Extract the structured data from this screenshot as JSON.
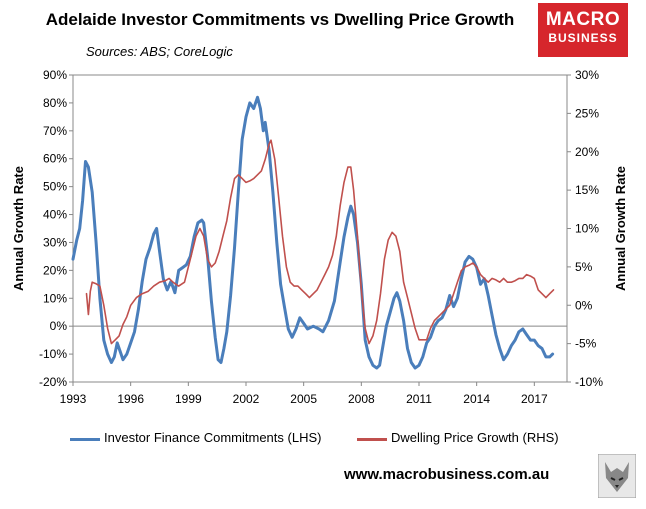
{
  "title": "Adelaide Investor Commitments vs Dwelling Price Growth",
  "subtitle": "Sources: ABS; CoreLogic",
  "logo": {
    "line1": "MACRO",
    "line2": "BUSINESS",
    "color": "#d6262c"
  },
  "website": "www.macrobusiness.com.au",
  "chart_data": {
    "type": "line",
    "xlabel": "",
    "x_ticks": [
      "1993",
      "1996",
      "1999",
      "2002",
      "2005",
      "2008",
      "2011",
      "2014",
      "2017"
    ],
    "xlim": [
      1993,
      2018.7
    ],
    "y_left": {
      "label": "Annual Growth Rate",
      "lim": [
        -20,
        90
      ],
      "ticks": [
        -20,
        -10,
        0,
        10,
        20,
        30,
        40,
        50,
        60,
        70,
        80,
        90
      ],
      "unit": "%"
    },
    "y_right": {
      "label": "Annual Growth Rate",
      "lim": [
        -10,
        30
      ],
      "ticks": [
        -10,
        -5,
        0,
        5,
        10,
        15,
        20,
        25,
        30
      ],
      "unit": "%"
    },
    "grid": false,
    "legend_position": "bottom",
    "series": [
      {
        "name": "Investor Finance Commitments (LHS)",
        "axis": "left",
        "color": "#4a7ebb",
        "points": [
          [
            1993.0,
            24
          ],
          [
            1993.2,
            31
          ],
          [
            1993.35,
            35
          ],
          [
            1993.5,
            45
          ],
          [
            1993.65,
            59
          ],
          [
            1993.8,
            57
          ],
          [
            1994.0,
            48
          ],
          [
            1994.2,
            30
          ],
          [
            1994.4,
            10
          ],
          [
            1994.6,
            -5
          ],
          [
            1994.8,
            -10
          ],
          [
            1995.0,
            -13
          ],
          [
            1995.15,
            -11
          ],
          [
            1995.3,
            -6
          ],
          [
            1995.45,
            -9
          ],
          [
            1995.6,
            -12
          ],
          [
            1995.8,
            -10
          ],
          [
            1996.0,
            -6
          ],
          [
            1996.2,
            -2
          ],
          [
            1996.4,
            6
          ],
          [
            1996.6,
            16
          ],
          [
            1996.8,
            24
          ],
          [
            1997.0,
            28
          ],
          [
            1997.2,
            33
          ],
          [
            1997.35,
            35
          ],
          [
            1997.5,
            27
          ],
          [
            1997.7,
            17
          ],
          [
            1997.9,
            13
          ],
          [
            1998.1,
            16
          ],
          [
            1998.3,
            12
          ],
          [
            1998.5,
            20
          ],
          [
            1998.7,
            21
          ],
          [
            1998.9,
            22
          ],
          [
            1999.1,
            25
          ],
          [
            1999.3,
            32
          ],
          [
            1999.5,
            37
          ],
          [
            1999.7,
            38
          ],
          [
            1999.8,
            37
          ],
          [
            2000.0,
            25
          ],
          [
            2000.2,
            9
          ],
          [
            2000.4,
            -4
          ],
          [
            2000.55,
            -12
          ],
          [
            2000.7,
            -13
          ],
          [
            2000.85,
            -8
          ],
          [
            2001.0,
            -2
          ],
          [
            2001.2,
            11
          ],
          [
            2001.4,
            28
          ],
          [
            2001.6,
            48
          ],
          [
            2001.8,
            67
          ],
          [
            2002.0,
            75
          ],
          [
            2002.2,
            80
          ],
          [
            2002.4,
            78
          ],
          [
            2002.6,
            82
          ],
          [
            2002.75,
            78
          ],
          [
            2002.9,
            70
          ],
          [
            2003.0,
            73
          ],
          [
            2003.2,
            63
          ],
          [
            2003.4,
            48
          ],
          [
            2003.6,
            30
          ],
          [
            2003.8,
            15
          ],
          [
            2004.0,
            7
          ],
          [
            2004.2,
            -1
          ],
          [
            2004.4,
            -4
          ],
          [
            2004.6,
            -1
          ],
          [
            2004.8,
            3
          ],
          [
            2005.0,
            1
          ],
          [
            2005.2,
            -1
          ],
          [
            2005.5,
            0
          ],
          [
            2005.8,
            -1
          ],
          [
            2006.0,
            -2
          ],
          [
            2006.3,
            2
          ],
          [
            2006.6,
            9
          ],
          [
            2006.9,
            23
          ],
          [
            2007.1,
            32
          ],
          [
            2007.3,
            39
          ],
          [
            2007.45,
            43
          ],
          [
            2007.6,
            40
          ],
          [
            2007.8,
            30
          ],
          [
            2008.0,
            15
          ],
          [
            2008.2,
            -5
          ],
          [
            2008.4,
            -11
          ],
          [
            2008.6,
            -14
          ],
          [
            2008.8,
            -15
          ],
          [
            2008.95,
            -14
          ],
          [
            2009.1,
            -8
          ],
          [
            2009.3,
            0
          ],
          [
            2009.5,
            5
          ],
          [
            2009.7,
            10
          ],
          [
            2009.85,
            12
          ],
          [
            2010.0,
            9
          ],
          [
            2010.2,
            2
          ],
          [
            2010.4,
            -8
          ],
          [
            2010.6,
            -13
          ],
          [
            2010.8,
            -15
          ],
          [
            2011.0,
            -14
          ],
          [
            2011.2,
            -11
          ],
          [
            2011.4,
            -6
          ],
          [
            2011.6,
            -4
          ],
          [
            2011.8,
            0
          ],
          [
            2012.0,
            2
          ],
          [
            2012.2,
            3
          ],
          [
            2012.4,
            6
          ],
          [
            2012.6,
            11
          ],
          [
            2012.8,
            7
          ],
          [
            2013.0,
            10
          ],
          [
            2013.2,
            17
          ],
          [
            2013.4,
            23
          ],
          [
            2013.6,
            25
          ],
          [
            2013.8,
            24
          ],
          [
            2014.0,
            21
          ],
          [
            2014.2,
            15
          ],
          [
            2014.4,
            17
          ],
          [
            2014.6,
            11
          ],
          [
            2014.8,
            4
          ],
          [
            2015.0,
            -3
          ],
          [
            2015.2,
            -8
          ],
          [
            2015.4,
            -12
          ],
          [
            2015.6,
            -10
          ],
          [
            2015.8,
            -7
          ],
          [
            2016.0,
            -5
          ],
          [
            2016.2,
            -2
          ],
          [
            2016.4,
            -1
          ],
          [
            2016.6,
            -3
          ],
          [
            2016.8,
            -5
          ],
          [
            2017.0,
            -5
          ],
          [
            2017.2,
            -7
          ],
          [
            2017.4,
            -8
          ],
          [
            2017.6,
            -11
          ],
          [
            2017.8,
            -11
          ],
          [
            2017.95,
            -10
          ]
        ]
      },
      {
        "name": "Dwelling Price Growth (RHS)",
        "axis": "right",
        "color": "#c0504d",
        "points": [
          [
            1993.7,
            1.5
          ],
          [
            1993.8,
            -1.2
          ],
          [
            1993.9,
            1.8
          ],
          [
            1994.0,
            3
          ],
          [
            1994.2,
            2.8
          ],
          [
            1994.4,
            2.5
          ],
          [
            1994.6,
            0
          ],
          [
            1994.8,
            -3
          ],
          [
            1995.0,
            -5
          ],
          [
            1995.2,
            -4.5
          ],
          [
            1995.4,
            -4
          ],
          [
            1995.6,
            -2.5
          ],
          [
            1995.8,
            -1.5
          ],
          [
            1996.0,
            0
          ],
          [
            1996.3,
            1
          ],
          [
            1996.6,
            1.5
          ],
          [
            1996.9,
            1.8
          ],
          [
            1997.2,
            2.5
          ],
          [
            1997.5,
            3
          ],
          [
            1997.8,
            3.2
          ],
          [
            1998.0,
            3.5
          ],
          [
            1998.2,
            3
          ],
          [
            1998.5,
            2.5
          ],
          [
            1998.8,
            3
          ],
          [
            1999.1,
            6
          ],
          [
            1999.4,
            9
          ],
          [
            1999.6,
            10
          ],
          [
            1999.8,
            9
          ],
          [
            2000.0,
            6
          ],
          [
            2000.2,
            5
          ],
          [
            2000.4,
            5.5
          ],
          [
            2000.6,
            7
          ],
          [
            2000.8,
            9
          ],
          [
            2001.0,
            11
          ],
          [
            2001.2,
            14
          ],
          [
            2001.4,
            16.5
          ],
          [
            2001.6,
            17
          ],
          [
            2001.8,
            16.5
          ],
          [
            2002.0,
            16
          ],
          [
            2002.2,
            16.2
          ],
          [
            2002.4,
            16.5
          ],
          [
            2002.6,
            17
          ],
          [
            2002.8,
            17.5
          ],
          [
            2003.0,
            19
          ],
          [
            2003.2,
            21
          ],
          [
            2003.3,
            21.5
          ],
          [
            2003.5,
            19
          ],
          [
            2003.7,
            14
          ],
          [
            2003.9,
            9
          ],
          [
            2004.1,
            5
          ],
          [
            2004.3,
            3
          ],
          [
            2004.5,
            2.5
          ],
          [
            2004.7,
            2.5
          ],
          [
            2004.9,
            2
          ],
          [
            2005.1,
            1.5
          ],
          [
            2005.3,
            1
          ],
          [
            2005.5,
            1.5
          ],
          [
            2005.7,
            2
          ],
          [
            2005.9,
            3
          ],
          [
            2006.1,
            4
          ],
          [
            2006.3,
            5
          ],
          [
            2006.5,
            6.5
          ],
          [
            2006.7,
            9
          ],
          [
            2006.9,
            13
          ],
          [
            2007.1,
            16
          ],
          [
            2007.3,
            18
          ],
          [
            2007.45,
            18
          ],
          [
            2007.6,
            15
          ],
          [
            2007.8,
            9
          ],
          [
            2008.0,
            2
          ],
          [
            2008.2,
            -3
          ],
          [
            2008.4,
            -5
          ],
          [
            2008.6,
            -4
          ],
          [
            2008.8,
            -2
          ],
          [
            2009.0,
            1.5
          ],
          [
            2009.2,
            6
          ],
          [
            2009.4,
            8.5
          ],
          [
            2009.6,
            9.5
          ],
          [
            2009.8,
            9
          ],
          [
            2010.0,
            7
          ],
          [
            2010.2,
            3
          ],
          [
            2010.4,
            1
          ],
          [
            2010.6,
            -1
          ],
          [
            2010.8,
            -3
          ],
          [
            2011.0,
            -4.5
          ],
          [
            2011.2,
            -4.5
          ],
          [
            2011.4,
            -4.5
          ],
          [
            2011.6,
            -3
          ],
          [
            2011.8,
            -2
          ],
          [
            2012.0,
            -1.5
          ],
          [
            2012.2,
            -1
          ],
          [
            2012.4,
            -0.5
          ],
          [
            2012.6,
            0
          ],
          [
            2012.8,
            1.5
          ],
          [
            2013.0,
            3
          ],
          [
            2013.2,
            4.5
          ],
          [
            2013.4,
            5
          ],
          [
            2013.6,
            5.2
          ],
          [
            2013.8,
            5.5
          ],
          [
            2014.0,
            5
          ],
          [
            2014.2,
            4
          ],
          [
            2014.4,
            3.5
          ],
          [
            2014.6,
            3
          ],
          [
            2014.8,
            3.5
          ],
          [
            2015.0,
            3.3
          ],
          [
            2015.2,
            3
          ],
          [
            2015.4,
            3.5
          ],
          [
            2015.6,
            3
          ],
          [
            2015.8,
            3
          ],
          [
            2016.0,
            3.2
          ],
          [
            2016.2,
            3.5
          ],
          [
            2016.4,
            3.5
          ],
          [
            2016.6,
            4
          ],
          [
            2016.8,
            3.8
          ],
          [
            2017.0,
            3.5
          ],
          [
            2017.2,
            2
          ],
          [
            2017.4,
            1.5
          ],
          [
            2017.6,
            1
          ],
          [
            2017.8,
            1.5
          ],
          [
            2018.0,
            2
          ]
        ]
      }
    ]
  }
}
